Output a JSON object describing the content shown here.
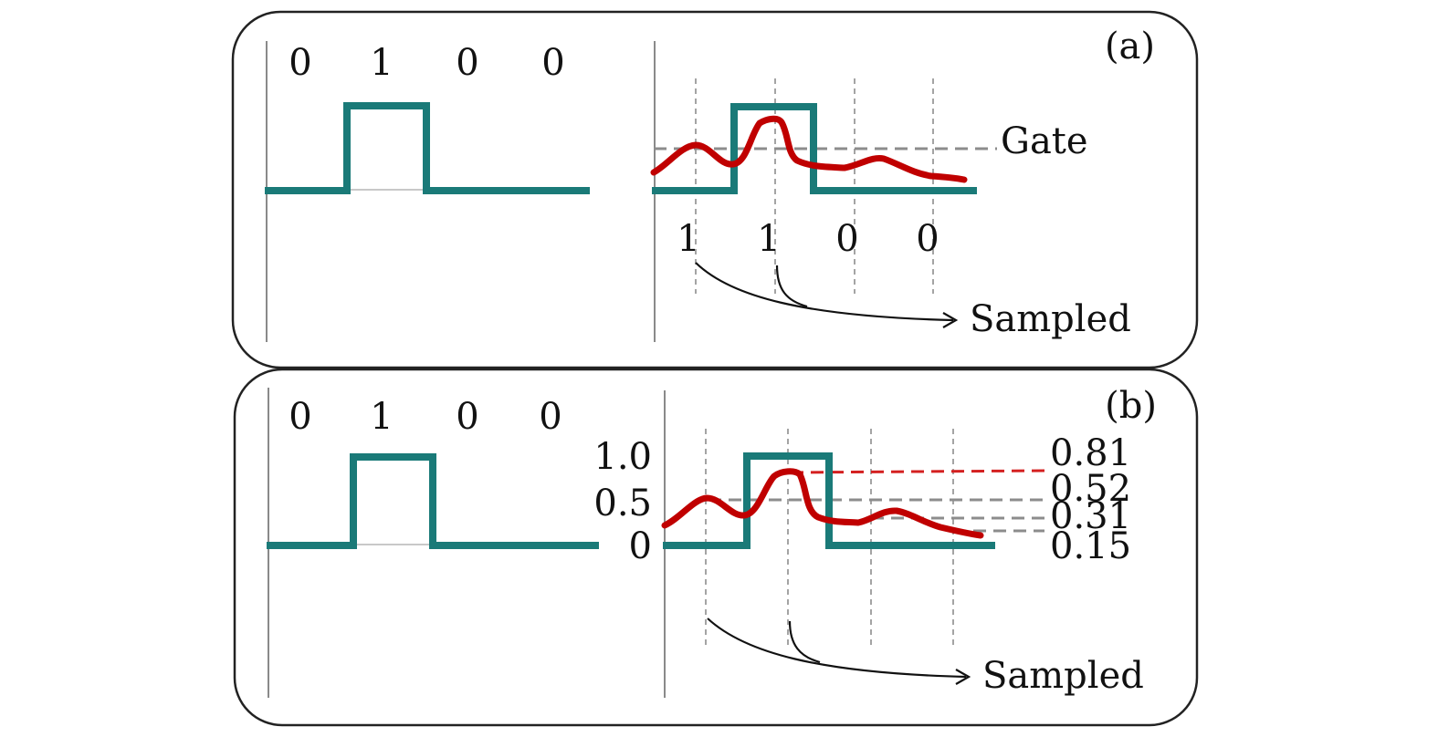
{
  "panel_a": {
    "tag": "(a)",
    "input_bits": [
      "0",
      "1",
      "0",
      "0"
    ],
    "gate_label": "Gate",
    "sampled_bits": [
      "1",
      "1",
      "0",
      "0"
    ],
    "sampled_label": "Sampled"
  },
  "panel_b": {
    "tag": "(b)",
    "input_bits": [
      "0",
      "1",
      "0",
      "0"
    ],
    "y_ticks": [
      "1.0",
      "0.5",
      "0"
    ],
    "sampled_levels": [
      "0.81",
      "0.52",
      "0.31",
      "0.15"
    ],
    "sampled_label": "Sampled"
  },
  "colors": {
    "pulse": "#1a7a78",
    "received": "#c00000",
    "highlight_level": "#d42020"
  }
}
